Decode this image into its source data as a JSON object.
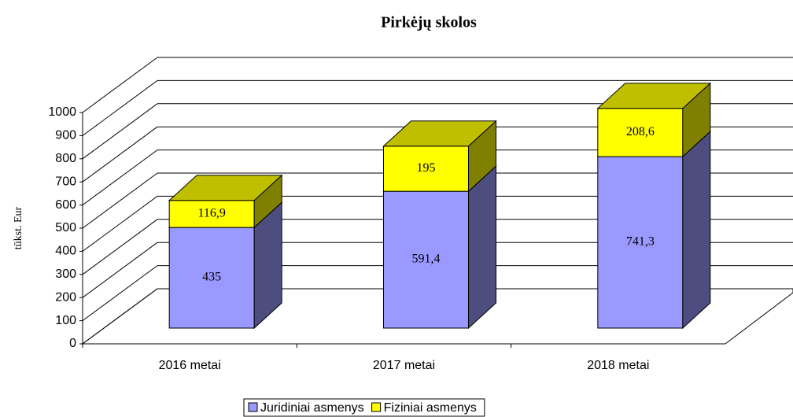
{
  "chart_data": {
    "type": "bar3d_stacked",
    "title": "Pirkėjų skolos",
    "y_label": "tūkst. Eur",
    "categories": [
      "2016 metai",
      "2017 metai",
      "2018 metai"
    ],
    "series": [
      {
        "name": "Juridiniai asmenys",
        "color": "#9999ff",
        "values": [
          435,
          591.4,
          741.3
        ],
        "value_labels": [
          "435",
          "591,4",
          "741,3"
        ]
      },
      {
        "name": "Fiziniai asmenys",
        "color": "#ffff00",
        "values": [
          116.9,
          195,
          208.6
        ],
        "value_labels": [
          "116,9",
          "195",
          "208,6"
        ]
      }
    ],
    "ylim": [
      0,
      1000
    ],
    "yticks": [
      0,
      100,
      200,
      300,
      400,
      500,
      600,
      700,
      800,
      900,
      1000
    ],
    "grid": true,
    "legend": "bottom"
  }
}
